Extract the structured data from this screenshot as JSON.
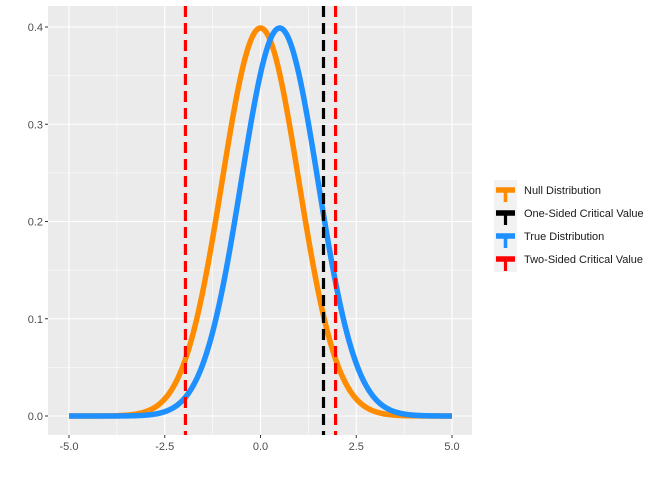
{
  "chart_data": {
    "type": "line",
    "title": "",
    "xlabel": "",
    "ylabel": "",
    "xlim": [
      -5,
      5
    ],
    "ylim": [
      0,
      0.4
    ],
    "grid": true,
    "legend_position": "right",
    "x_ticks": [
      -5.0,
      -2.5,
      0.0,
      2.5,
      5.0
    ],
    "x_tick_labels": [
      "-5.0",
      "-2.5",
      "0.0",
      "2.5",
      "5.0"
    ],
    "y_ticks": [
      0.0,
      0.1,
      0.2,
      0.3,
      0.4
    ],
    "y_tick_labels": [
      "0.0",
      "0.1",
      "0.2",
      "0.3",
      "0.4"
    ],
    "series": [
      {
        "name": "Null Distribution",
        "kind": "normal-density",
        "mean": 0,
        "sd": 1,
        "color": "#ff8c00",
        "x": [
          -5.0,
          -4.5,
          -4.0,
          -3.5,
          -3.0,
          -2.5,
          -2.0,
          -1.5,
          -1.0,
          -0.5,
          0.0,
          0.5,
          1.0,
          1.5,
          2.0,
          2.5,
          3.0,
          3.5,
          4.0,
          4.5,
          5.0
        ],
        "y": [
          1.5e-06,
          1.6e-05,
          0.000134,
          0.000873,
          0.004432,
          0.017528,
          0.053991,
          0.129518,
          0.241971,
          0.352065,
          0.398942,
          0.352065,
          0.241971,
          0.129518,
          0.053991,
          0.017528,
          0.004432,
          0.000873,
          0.000134,
          1.6e-05,
          1.5e-06
        ]
      },
      {
        "name": "True Distribution",
        "kind": "normal-density",
        "mean": 0.5,
        "sd": 1,
        "color": "#1e90ff",
        "x": [
          -5.0,
          -4.5,
          -4.0,
          -3.5,
          -3.0,
          -2.5,
          -2.0,
          -1.5,
          -1.0,
          -0.5,
          0.0,
          0.5,
          1.0,
          1.5,
          2.0,
          2.5,
          3.0,
          3.5,
          4.0,
          4.5,
          5.0
        ],
        "y": [
          1.1e-07,
          1.5e-06,
          1.6e-05,
          0.000134,
          0.000873,
          0.004432,
          0.017528,
          0.053991,
          0.129518,
          0.241971,
          0.352065,
          0.398942,
          0.352065,
          0.241971,
          0.129518,
          0.053991,
          0.017528,
          0.004432,
          0.000873,
          0.000134,
          1.6e-05
        ]
      }
    ],
    "vlines": [
      {
        "name": "One-Sided Critical Value",
        "x": 1.645,
        "color": "#000000",
        "dashed": true
      },
      {
        "name": "Two-Sided Critical Value",
        "x": -1.96,
        "color": "#ff0000",
        "dashed": true
      },
      {
        "name": "Two-Sided Critical Value",
        "x": 1.96,
        "color": "#ff0000",
        "dashed": true
      }
    ],
    "legend": [
      {
        "label": "Null Distribution",
        "color": "#ff8c00",
        "dashed": false
      },
      {
        "label": "One-Sided Critical Value",
        "color": "#000000",
        "dashed": true
      },
      {
        "label": "True Distribution",
        "color": "#1e90ff",
        "dashed": false
      },
      {
        "label": "Two-Sided Critical Value",
        "color": "#ff0000",
        "dashed": true
      }
    ],
    "panel_background": "#ebebeb",
    "grid_color": "#ffffff"
  }
}
